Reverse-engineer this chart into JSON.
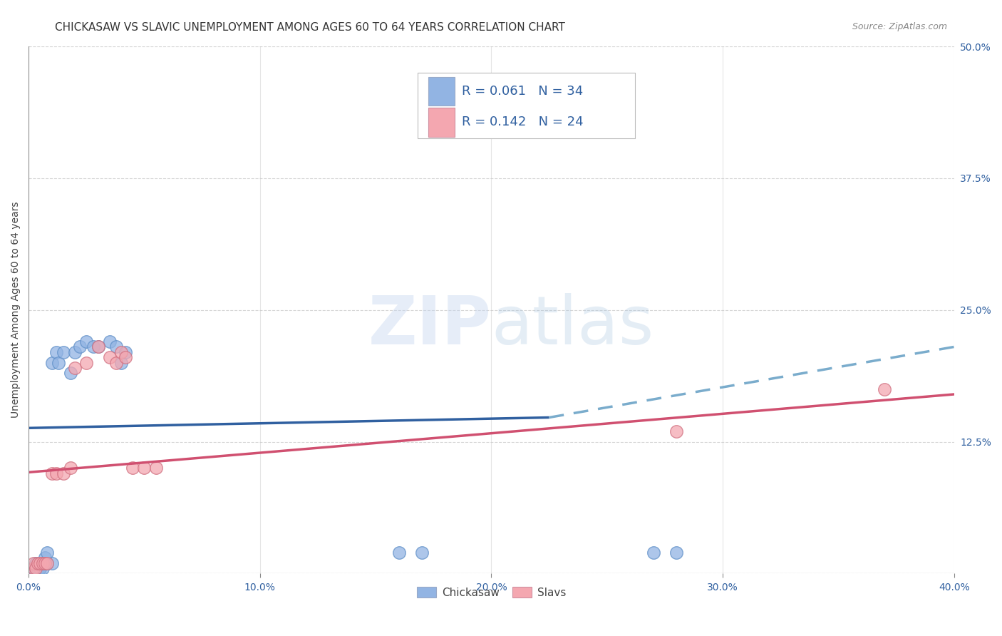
{
  "title": "CHICKASAW VS SLAVIC UNEMPLOYMENT AMONG AGES 60 TO 64 YEARS CORRELATION CHART",
  "source": "Source: ZipAtlas.com",
  "ylabel": "Unemployment Among Ages 60 to 64 years",
  "xlim": [
    0.0,
    0.4
  ],
  "ylim": [
    0.0,
    0.5
  ],
  "xticks": [
    0.0,
    0.1,
    0.2,
    0.3,
    0.4
  ],
  "yticks": [
    0.0,
    0.125,
    0.25,
    0.375,
    0.5
  ],
  "chickasaw_color": "#92b4e3",
  "slavic_color": "#f4a7b0",
  "background_color": "#ffffff",
  "legend_r1": "R = 0.061",
  "legend_n1": "N = 34",
  "legend_r2": "R = 0.142",
  "legend_n2": "N = 24",
  "chickasaw_x": [
    0.002,
    0.002,
    0.003,
    0.003,
    0.004,
    0.004,
    0.005,
    0.005,
    0.005,
    0.006,
    0.006,
    0.007,
    0.007,
    0.008,
    0.008,
    0.01,
    0.01,
    0.012,
    0.013,
    0.015,
    0.018,
    0.02,
    0.022,
    0.025,
    0.028,
    0.03,
    0.035,
    0.038,
    0.04,
    0.042,
    0.16,
    0.17,
    0.27,
    0.28
  ],
  "chickasaw_y": [
    0.005,
    0.005,
    0.005,
    0.01,
    0.005,
    0.005,
    0.005,
    0.005,
    0.005,
    0.005,
    0.01,
    0.01,
    0.015,
    0.01,
    0.02,
    0.01,
    0.2,
    0.21,
    0.2,
    0.21,
    0.19,
    0.21,
    0.215,
    0.22,
    0.215,
    0.215,
    0.22,
    0.215,
    0.2,
    0.21,
    0.02,
    0.02,
    0.02,
    0.02
  ],
  "slavic_x": [
    0.002,
    0.002,
    0.003,
    0.004,
    0.005,
    0.006,
    0.007,
    0.008,
    0.01,
    0.012,
    0.015,
    0.018,
    0.02,
    0.025,
    0.03,
    0.035,
    0.038,
    0.04,
    0.042,
    0.045,
    0.05,
    0.055,
    0.28,
    0.37
  ],
  "slavic_y": [
    0.005,
    0.01,
    0.005,
    0.01,
    0.01,
    0.01,
    0.01,
    0.01,
    0.095,
    0.095,
    0.095,
    0.1,
    0.195,
    0.2,
    0.215,
    0.205,
    0.2,
    0.21,
    0.205,
    0.1,
    0.1,
    0.1,
    0.135,
    0.175
  ],
  "trend_c_x0": 0.0,
  "trend_c_y0": 0.138,
  "trend_c_x1_solid": 0.225,
  "trend_c_y1_solid": 0.148,
  "trend_c_x1_dash": 0.4,
  "trend_c_y1_dash": 0.215,
  "trend_s_x0": 0.0,
  "trend_s_y0": 0.096,
  "trend_s_x1": 0.4,
  "trend_s_y1": 0.17,
  "grid_color": "#cccccc",
  "title_fontsize": 11,
  "axis_label_fontsize": 10,
  "tick_fontsize": 10,
  "marker_size": 160
}
